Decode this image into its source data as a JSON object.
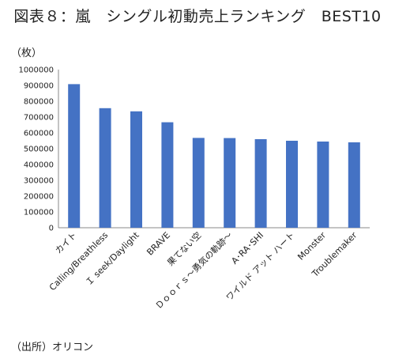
{
  "header": {
    "title": "図表８：嵐　シングル初動売上ランキング　BEST10",
    "unit": "（枚）"
  },
  "footer": {
    "source": "（出所）オリコン"
  },
  "colors": {
    "bar": "#4472c4",
    "axis": "#888888"
  },
  "chart_data": {
    "type": "bar",
    "title": "図表８：嵐　シングル初動売上ランキング　BEST10",
    "ylabel": "（枚）",
    "xlabel": "",
    "ylim": [
      0,
      1000000
    ],
    "yticks": [
      0,
      100000,
      200000,
      300000,
      400000,
      500000,
      600000,
      700000,
      800000,
      900000,
      1000000
    ],
    "grid": false,
    "categories": [
      "カイト",
      "Calling/Breathless",
      "Ｉ seek/Daylight",
      "BRAVE",
      "果てない空",
      "Ｄｏｏｒｓ～勇気の軌跡～",
      "A･RA･SHI",
      "ワイルド アット ハート",
      "Monster",
      "Troublemaker"
    ],
    "values": [
      908000,
      756000,
      736000,
      667000,
      568000,
      567000,
      560000,
      550000,
      545000,
      540000
    ]
  }
}
